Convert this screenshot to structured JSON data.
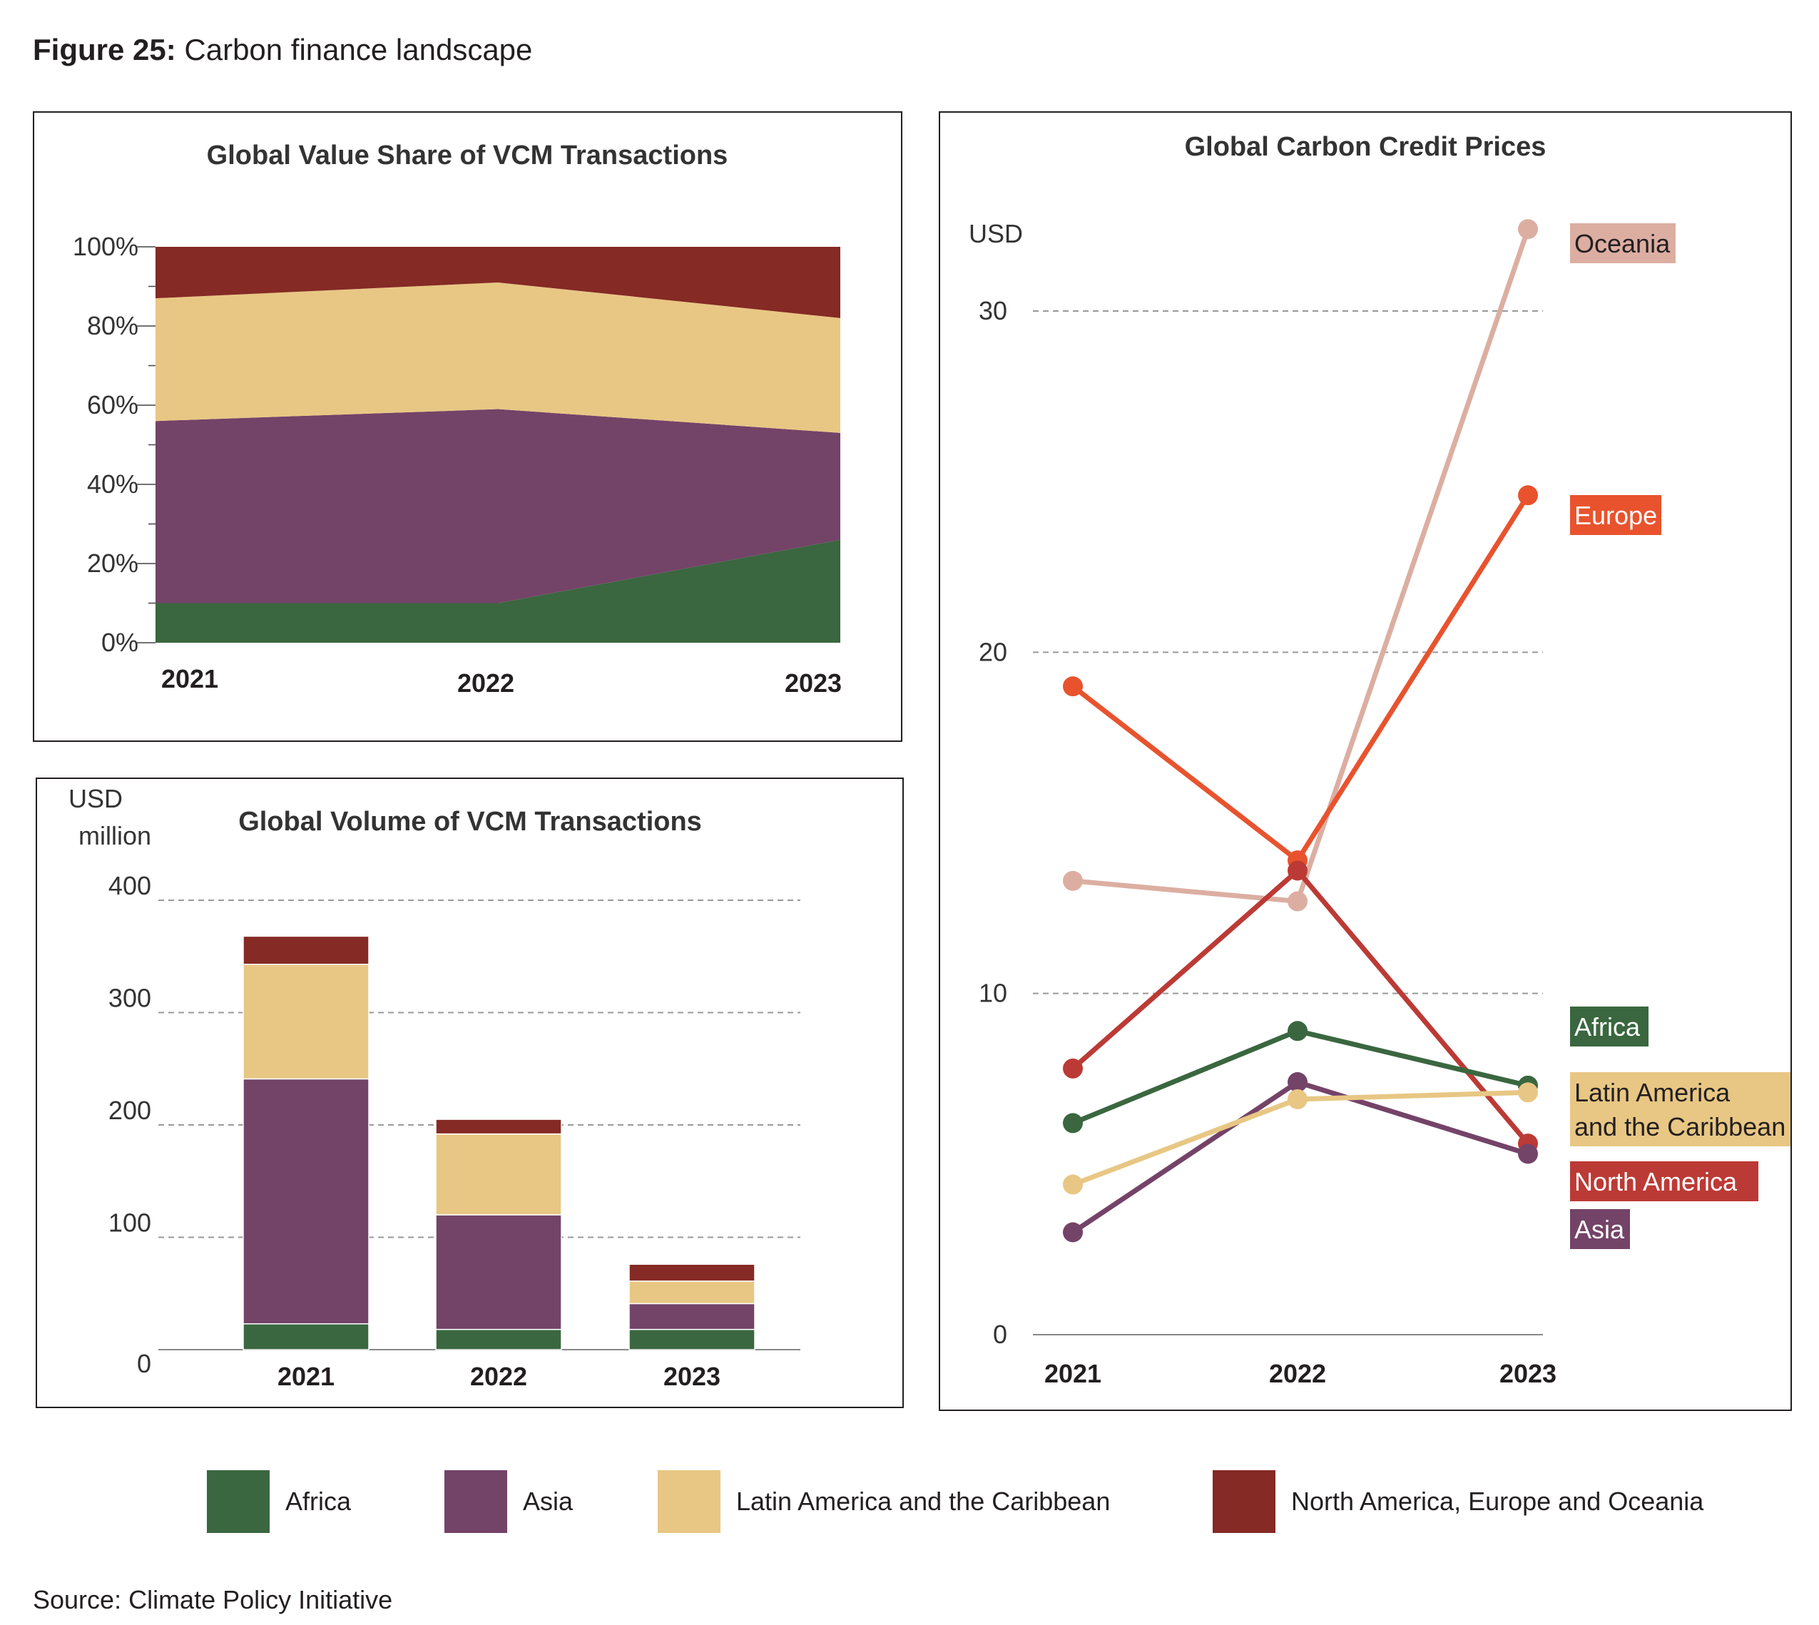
{
  "figure": {
    "title_bold": "Figure 25:",
    "title_rest": " Carbon finance landscape"
  },
  "source": "Source: Climate Policy Initiative",
  "colors": {
    "africa": "#3a673f",
    "asia": "#744368",
    "latam": "#e8c784",
    "namerica_eu_oceania": "#852a24",
    "europe": "#e8532e",
    "oceania": "#dcaea2",
    "north_america": "#bc3a35"
  },
  "legend": [
    {
      "label": "Africa",
      "color": "#3a673f"
    },
    {
      "label": "Asia",
      "color": "#744368"
    },
    {
      "label": "Latin America and the Caribbean",
      "color": "#e8c784"
    },
    {
      "label": "North America, Europe and Oceania",
      "color": "#852a24"
    }
  ],
  "chart_data": [
    {
      "type": "area",
      "stacked": true,
      "title": "Global Value Share of VCM Transactions",
      "x": [
        "2021",
        "2022",
        "2023"
      ],
      "ylim": [
        0,
        100
      ],
      "yticks": [
        "0%",
        "20%",
        "40%",
        "60%",
        "80%",
        "100%"
      ],
      "series": [
        {
          "name": "Africa",
          "color": "#3a673f",
          "values": [
            10,
            10,
            26
          ]
        },
        {
          "name": "Asia",
          "color": "#744368",
          "values": [
            46,
            49,
            27
          ]
        },
        {
          "name": "Latin America and the Caribbean",
          "color": "#e8c784",
          "values": [
            31,
            32,
            29
          ]
        },
        {
          "name": "North America, Europe and Oceania",
          "color": "#852a24",
          "values": [
            13,
            9,
            18
          ]
        }
      ]
    },
    {
      "type": "bar",
      "stacked": true,
      "title": "Global Volume of VCM Transactions",
      "ylabel": "USD million",
      "categories": [
        "2021",
        "2022",
        "2023"
      ],
      "ylim": [
        0,
        400
      ],
      "yticks": [
        "0",
        "100",
        "200",
        "300",
        "400"
      ],
      "grid": true,
      "series": [
        {
          "name": "Africa",
          "color": "#3a673f",
          "values": [
            23,
            18,
            18
          ]
        },
        {
          "name": "Asia",
          "color": "#744368",
          "values": [
            218,
            102,
            23
          ]
        },
        {
          "name": "Latin America and the Caribbean",
          "color": "#e8c784",
          "values": [
            102,
            72,
            20
          ]
        },
        {
          "name": "North America, Europe and Oceania",
          "color": "#852a24",
          "values": [
            25,
            13,
            15
          ]
        }
      ]
    },
    {
      "type": "line",
      "title": "Global Carbon Credit Prices",
      "ylabel": "USD",
      "x": [
        "2021",
        "2022",
        "2023"
      ],
      "ylim": [
        0,
        33
      ],
      "yticks": [
        "0",
        "10",
        "20",
        "30"
      ],
      "grid": true,
      "series": [
        {
          "name": "Oceania",
          "color": "#dcaea2",
          "label_text": "#231f20",
          "values": [
            13.3,
            12.7,
            32.4
          ]
        },
        {
          "name": "Europe",
          "color": "#e8532e",
          "label_text": "#ffffff",
          "values": [
            19.0,
            13.9,
            24.6
          ]
        },
        {
          "name": "North America",
          "color": "#bc3a35",
          "label_text": "#ffffff",
          "values": [
            7.8,
            13.6,
            5.6
          ]
        },
        {
          "name": "Africa",
          "color": "#3a673f",
          "label_text": "#ffffff",
          "values": [
            6.2,
            8.9,
            7.3
          ]
        },
        {
          "name": "Asia",
          "color": "#744368",
          "label_text": "#ffffff",
          "values": [
            3.0,
            7.4,
            5.3
          ]
        },
        {
          "name": "Latin America and the Caribbean",
          "label_lines": [
            "Latin America",
            "and the Caribbean"
          ],
          "color": "#e8c784",
          "label_text": "#231f20",
          "values": [
            4.4,
            6.9,
            7.1
          ]
        }
      ]
    }
  ]
}
